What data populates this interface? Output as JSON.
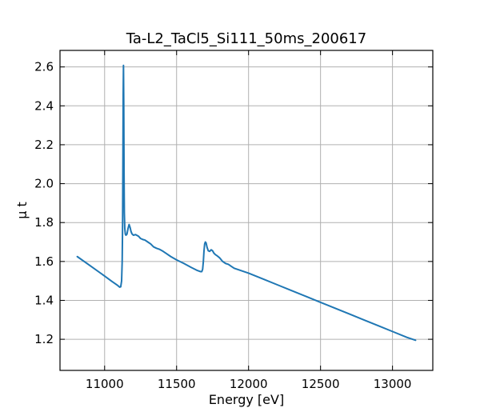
{
  "chart_data": {
    "type": "line",
    "title": "Ta-L2_TaCl5_Si111_50ms_200617",
    "xlabel": "Energy [eV]",
    "ylabel": "μ t",
    "xlim": [
      10690,
      13280
    ],
    "ylim": [
      1.04,
      2.685
    ],
    "x_ticks": [
      11000,
      11500,
      12000,
      12500,
      13000
    ],
    "y_ticks": [
      1.2,
      1.4,
      1.6,
      1.8,
      2.0,
      2.2,
      2.4,
      2.6
    ],
    "x_tick_labels": [
      "11000",
      "11500",
      "12000",
      "12500",
      "13000"
    ],
    "y_tick_labels": [
      "1.2",
      "1.4",
      "1.6",
      "1.8",
      "2.0",
      "2.2",
      "2.4",
      "2.6"
    ],
    "grid": true,
    "line_color": "#1f77b4",
    "series": [
      {
        "x": [
          10810,
          10900,
          11000,
          11050,
          11090,
          11105,
          11112,
          11118,
          11122,
          11125,
          11127,
          11129,
          11131,
          11133,
          11135,
          11137,
          11140,
          11144,
          11148,
          11155,
          11163,
          11170,
          11177,
          11183,
          11190,
          11200,
          11215,
          11235,
          11250,
          11265,
          11280,
          11300,
          11320,
          11340,
          11360,
          11380,
          11400,
          11430,
          11460,
          11500,
          11550,
          11600,
          11640,
          11665,
          11675,
          11681,
          11686,
          11690,
          11695,
          11700,
          11705,
          11712,
          11720,
          11730,
          11740,
          11750,
          11760,
          11770,
          11780,
          11800,
          11820,
          11840,
          11860,
          11870,
          11880,
          11900,
          12000,
          12100,
          12200,
          12300,
          12400,
          12500,
          12600,
          12700,
          12800,
          12900,
          13000,
          13100,
          13160
        ],
        "y": [
          1.625,
          1.578,
          1.525,
          1.498,
          1.477,
          1.468,
          1.47,
          1.5,
          1.6,
          1.8,
          2.1,
          2.45,
          2.608,
          2.4,
          2.05,
          1.85,
          1.77,
          1.74,
          1.735,
          1.74,
          1.77,
          1.79,
          1.775,
          1.755,
          1.742,
          1.735,
          1.738,
          1.73,
          1.718,
          1.713,
          1.71,
          1.7,
          1.69,
          1.675,
          1.668,
          1.663,
          1.655,
          1.64,
          1.625,
          1.608,
          1.59,
          1.57,
          1.555,
          1.548,
          1.548,
          1.56,
          1.6,
          1.65,
          1.69,
          1.7,
          1.695,
          1.672,
          1.655,
          1.652,
          1.66,
          1.655,
          1.642,
          1.635,
          1.63,
          1.618,
          1.6,
          1.59,
          1.585,
          1.58,
          1.575,
          1.565,
          1.54,
          1.51,
          1.48,
          1.45,
          1.42,
          1.39,
          1.36,
          1.33,
          1.3,
          1.27,
          1.24,
          1.21,
          1.195
        ]
      }
    ]
  }
}
